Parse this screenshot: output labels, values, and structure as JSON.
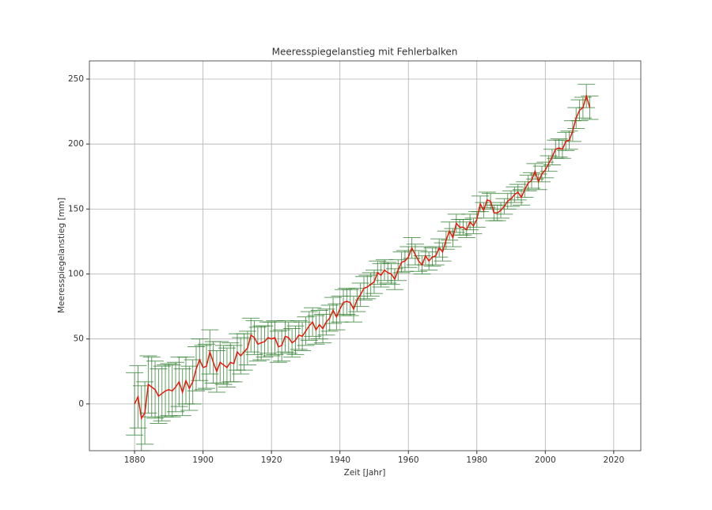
{
  "chart_data": {
    "type": "errorbar-line",
    "title": "Meeresspiegelanstieg mit Fehlerbalken",
    "xlabel": "Zeit [Jahr]",
    "ylabel": "Meeresspiegelanstieg [mm]",
    "x": [
      1880,
      1881,
      1882,
      1883,
      1884,
      1885,
      1886,
      1887,
      1888,
      1889,
      1890,
      1891,
      1892,
      1893,
      1894,
      1895,
      1896,
      1897,
      1898,
      1899,
      1900,
      1901,
      1902,
      1903,
      1904,
      1905,
      1906,
      1907,
      1908,
      1909,
      1910,
      1911,
      1912,
      1913,
      1914,
      1915,
      1916,
      1917,
      1918,
      1919,
      1920,
      1921,
      1922,
      1923,
      1924,
      1925,
      1926,
      1927,
      1928,
      1929,
      1930,
      1931,
      1932,
      1933,
      1934,
      1935,
      1936,
      1937,
      1938,
      1939,
      1940,
      1941,
      1942,
      1943,
      1944,
      1945,
      1946,
      1947,
      1948,
      1949,
      1950,
      1951,
      1952,
      1953,
      1954,
      1955,
      1956,
      1957,
      1958,
      1959,
      1960,
      1961,
      1962,
      1963,
      1964,
      1965,
      1966,
      1967,
      1968,
      1969,
      1970,
      1971,
      1972,
      1973,
      1974,
      1975,
      1976,
      1977,
      1978,
      1979,
      1980,
      1981,
      1982,
      1983,
      1984,
      1985,
      1986,
      1987,
      1988,
      1989,
      1990,
      1991,
      1992,
      1993,
      1994,
      1995,
      1996,
      1997,
      1998,
      1999,
      2000,
      2001,
      2002,
      2003,
      2004,
      2005,
      2006,
      2007,
      2008,
      2009,
      2010,
      2011,
      2012,
      2013
    ],
    "values": [
      0,
      5.5,
      -11,
      -7,
      15,
      13,
      11,
      6,
      8,
      10,
      11,
      10,
      13,
      17,
      9,
      18,
      12,
      17,
      27,
      34,
      28,
      29,
      40,
      32,
      25,
      32,
      30,
      28,
      32,
      31,
      40,
      37,
      40,
      43,
      53,
      51,
      46,
      47,
      48,
      51,
      50,
      51,
      44,
      45,
      52,
      51,
      47,
      49,
      53,
      52,
      56,
      60,
      63,
      57,
      61,
      58,
      63,
      66,
      72,
      67,
      73,
      78,
      79,
      78,
      73,
      80,
      84,
      89,
      90,
      92,
      94,
      101,
      99,
      103,
      101,
      100,
      96,
      103,
      109,
      110,
      113,
      120,
      115,
      110,
      107,
      114,
      110,
      113,
      114,
      120,
      117,
      126,
      133,
      128,
      139,
      136,
      136,
      134,
      140,
      137,
      142,
      154,
      149,
      157,
      156,
      147,
      147,
      149,
      152,
      156,
      158,
      161,
      163,
      159,
      165,
      170,
      172,
      179,
      171,
      177,
      180,
      185,
      190,
      196,
      197,
      196,
      202,
      203,
      210,
      220,
      226,
      228,
      237,
      228
    ],
    "errors": [
      24,
      24,
      25,
      24,
      22,
      23,
      22,
      21,
      21,
      20,
      20,
      20,
      19,
      19,
      18,
      18,
      17,
      17,
      17,
      16,
      17,
      17,
      17,
      16,
      16,
      16,
      15,
      15,
      15,
      14,
      14,
      14,
      14,
      13,
      13,
      13,
      13,
      13,
      12,
      12,
      13,
      13,
      12,
      12,
      12,
      12,
      11,
      11,
      11,
      11,
      11,
      11,
      11,
      11,
      11,
      11,
      10,
      10,
      10,
      10,
      10,
      10,
      10,
      10,
      10,
      9,
      9,
      9,
      9,
      9,
      9,
      9,
      9,
      8,
      8,
      8,
      8,
      8,
      8,
      8,
      8,
      8,
      8,
      8,
      7,
      7,
      7,
      7,
      7,
      7,
      7,
      7,
      7,
      7,
      7,
      6,
      6,
      6,
      6,
      6,
      6,
      6,
      6,
      6,
      6,
      6,
      6,
      6,
      6,
      6,
      6,
      6,
      6,
      6,
      6,
      6,
      6,
      6,
      6,
      6,
      6,
      6,
      6,
      7,
      7,
      7,
      7,
      7,
      8,
      8,
      8,
      8,
      9,
      9
    ],
    "color": "#e8190c",
    "error_color": "#2e7d2e",
    "xlim": [
      1866.8,
      2027.9
    ],
    "ylim": [
      -36,
      264
    ],
    "xticks": [
      1880,
      1900,
      1920,
      1940,
      1960,
      1980,
      2000,
      2020
    ],
    "yticks": [
      0,
      50,
      100,
      150,
      200,
      250
    ],
    "grid": true
  }
}
